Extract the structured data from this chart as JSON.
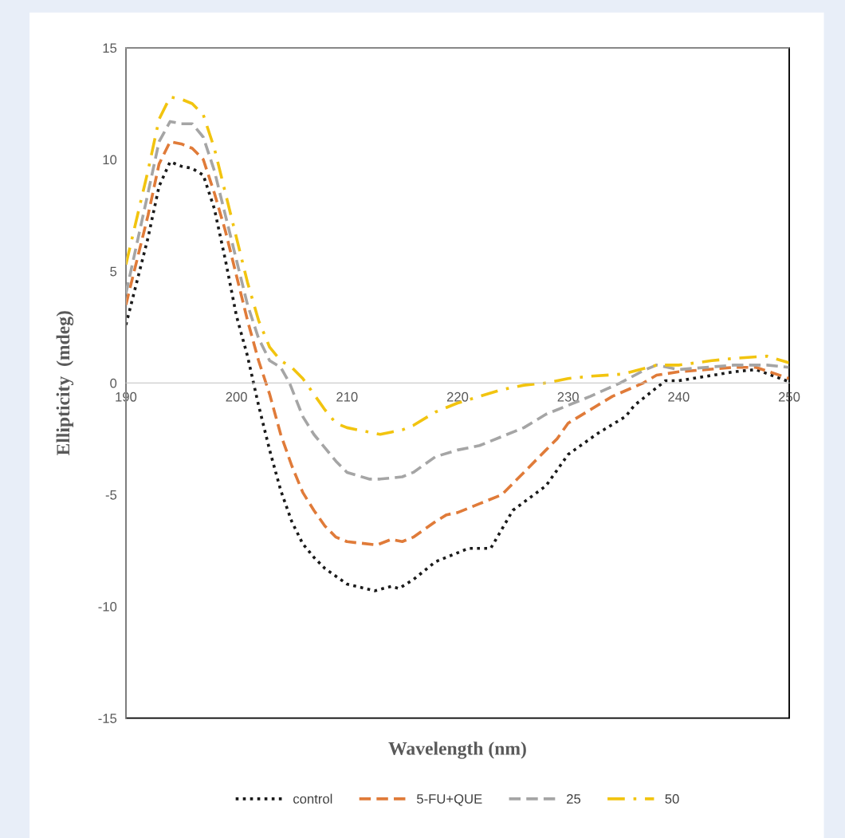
{
  "chart_data": {
    "type": "line",
    "xlabel": "Wavelength (nm)",
    "ylabel": "Ellipticity  (mdeg)",
    "xlim": [
      190,
      250
    ],
    "xticks": [
      190,
      200,
      210,
      220,
      230,
      240,
      250
    ],
    "ylim": [
      -15,
      15
    ],
    "yticks": [
      -15,
      -10,
      -5,
      0,
      5,
      10,
      15
    ],
    "grid": false,
    "legend": "bottom",
    "series": [
      {
        "name": "control",
        "color": "#1a1a1a",
        "line_style": "dotted",
        "x": [
          190,
          192,
          193,
          194,
          195,
          196,
          197,
          198,
          199,
          200,
          201,
          202,
          203,
          204,
          205,
          206,
          207,
          208,
          210,
          212.5,
          214,
          214.7,
          216,
          218,
          220,
          221,
          223,
          225,
          228,
          230,
          232.7,
          235.2,
          236,
          238.8,
          240,
          245,
          247,
          250
        ],
        "values": [
          2.6,
          6.5,
          8.8,
          9.9,
          9.7,
          9.6,
          9.3,
          7.8,
          5.5,
          3.0,
          1.2,
          -1.0,
          -3.0,
          -4.8,
          -6.2,
          -7.2,
          -7.8,
          -8.3,
          -9.0,
          -9.3,
          -9.1,
          -9.2,
          -8.8,
          -8.0,
          -7.6,
          -7.4,
          -7.4,
          -5.7,
          -4.6,
          -3.2,
          -2.25,
          -1.5,
          -1.0,
          0.1,
          0.1,
          0.5,
          0.6,
          0.05
        ]
      },
      {
        "name": "5-FU+QUE",
        "color": "#e07b39",
        "line_style": "dashed",
        "x": [
          190,
          192,
          193,
          194,
          195,
          196,
          197,
          198,
          199,
          200,
          201,
          202,
          203,
          204,
          205,
          206,
          207,
          208,
          209,
          210,
          212.7,
          214,
          215,
          216,
          218,
          219,
          220,
          222,
          224,
          226,
          228,
          229,
          230,
          232,
          234,
          236.8,
          238,
          240,
          245,
          247,
          250
        ],
        "values": [
          3.5,
          7.5,
          9.8,
          10.8,
          10.7,
          10.5,
          10.0,
          8.5,
          6.8,
          4.8,
          2.8,
          1.0,
          -0.5,
          -2.3,
          -3.7,
          -4.9,
          -5.7,
          -6.4,
          -6.9,
          -7.1,
          -7.25,
          -7.0,
          -7.1,
          -6.9,
          -6.2,
          -5.9,
          -5.8,
          -5.4,
          -5.0,
          -4.0,
          -3.0,
          -2.5,
          -1.8,
          -1.2,
          -0.6,
          0.0,
          0.35,
          0.5,
          0.7,
          0.7,
          0.2
        ]
      },
      {
        "name": "25",
        "color": "#a5a5a5",
        "line_style": "dashed",
        "x": [
          190,
          192,
          193,
          194,
          195,
          196,
          197,
          198,
          199,
          200,
          201,
          202,
          203,
          204,
          204.8,
          206,
          207,
          208,
          209,
          210,
          212,
          213,
          215,
          216,
          218,
          220,
          222,
          224,
          226,
          228,
          230,
          232,
          234.7,
          237,
          238,
          240,
          245,
          248,
          250
        ],
        "values": [
          4.0,
          8.5,
          10.8,
          11.7,
          11.6,
          11.6,
          11.0,
          9.5,
          7.5,
          5.5,
          3.5,
          2.0,
          1.0,
          0.7,
          0.0,
          -1.5,
          -2.3,
          -2.9,
          -3.5,
          -4.0,
          -4.3,
          -4.3,
          -4.2,
          -4.0,
          -3.3,
          -3.0,
          -2.8,
          -2.4,
          -2.0,
          -1.4,
          -1.0,
          -0.6,
          0.0,
          0.6,
          0.8,
          0.6,
          0.8,
          0.8,
          0.7
        ]
      },
      {
        "name": "50",
        "color": "#f2c40f",
        "line_style": "dashdot",
        "x": [
          190,
          192,
          193,
          194,
          195,
          196,
          197,
          198,
          199,
          200,
          201,
          202,
          203,
          204,
          205,
          206,
          207,
          208,
          209,
          210,
          212,
          213,
          214,
          215,
          216,
          218,
          220,
          222,
          224,
          226,
          228,
          230,
          232,
          235,
          238,
          240,
          243,
          245,
          248,
          250
        ],
        "values": [
          5.3,
          9.5,
          11.8,
          12.8,
          12.7,
          12.5,
          12.0,
          10.5,
          8.5,
          6.5,
          4.5,
          2.8,
          1.6,
          1.0,
          0.7,
          0.2,
          -0.5,
          -1.2,
          -1.8,
          -2.0,
          -2.2,
          -2.3,
          -2.2,
          -2.1,
          -1.9,
          -1.3,
          -0.9,
          -0.6,
          -0.3,
          -0.1,
          0.0,
          0.2,
          0.3,
          0.4,
          0.8,
          0.8,
          1.0,
          1.1,
          1.2,
          0.9
        ]
      }
    ]
  }
}
